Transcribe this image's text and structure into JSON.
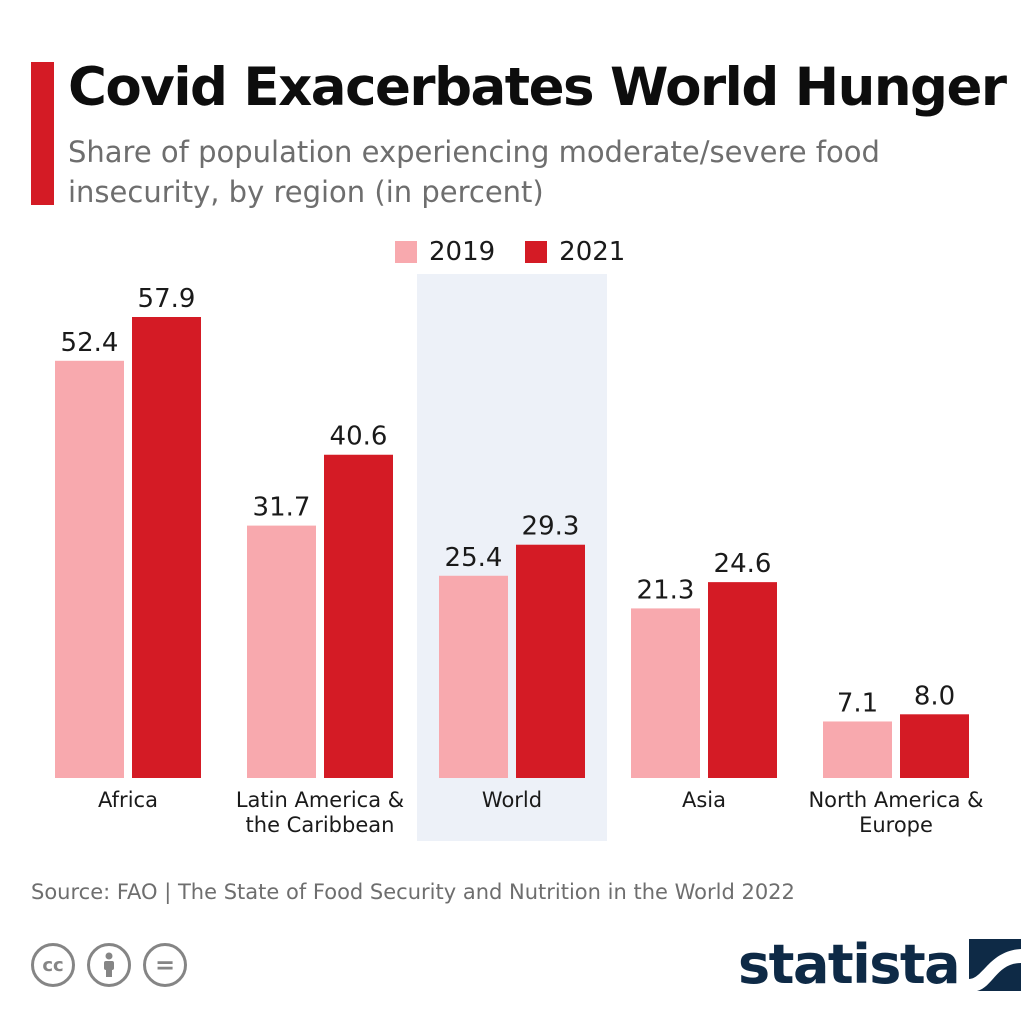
{
  "header": {
    "title": "Covid Exacerbates World Hunger",
    "subtitle": "Share of population experiencing moderate/severe food insecurity, by region (in percent)"
  },
  "legend": {
    "items": [
      {
        "label": "2019",
        "color": "#f8a9ae"
      },
      {
        "label": "2021",
        "color": "#d41b25"
      }
    ]
  },
  "chart_data": {
    "type": "bar",
    "categories": [
      "Africa",
      "Latin America & the Caribbean",
      "World",
      "Asia",
      "North America & Europe"
    ],
    "category_lines": [
      [
        "Africa"
      ],
      [
        "Latin America &",
        "the Caribbean"
      ],
      [
        "World"
      ],
      [
        "Asia"
      ],
      [
        "North America &",
        "Europe"
      ]
    ],
    "series": [
      {
        "name": "2019",
        "values": [
          52.4,
          31.7,
          25.4,
          21.3,
          7.1
        ],
        "labels": [
          "52.4",
          "31.7",
          "25.4",
          "21.3",
          "7.1"
        ],
        "color": "#f8a9ae"
      },
      {
        "name": "2021",
        "values": [
          57.9,
          40.6,
          29.3,
          24.6,
          8.0
        ],
        "labels": [
          "57.9",
          "40.6",
          "29.3",
          "24.6",
          "8.0"
        ],
        "color": "#d41b25"
      }
    ],
    "highlight_category": "World",
    "highlight_color": "#edf1f8",
    "ylim": [
      0,
      57.9
    ],
    "grid": false,
    "legend_position": "top-center"
  },
  "footer": {
    "source": "Source: FAO | The State of Food Security and Nutrition in the World 2022",
    "logo_text": "statista",
    "cc_icons": [
      "cc-icon",
      "attribution-icon",
      "no-derivatives-icon"
    ],
    "cc_glyphs": [
      "cc",
      "",
      "="
    ]
  }
}
